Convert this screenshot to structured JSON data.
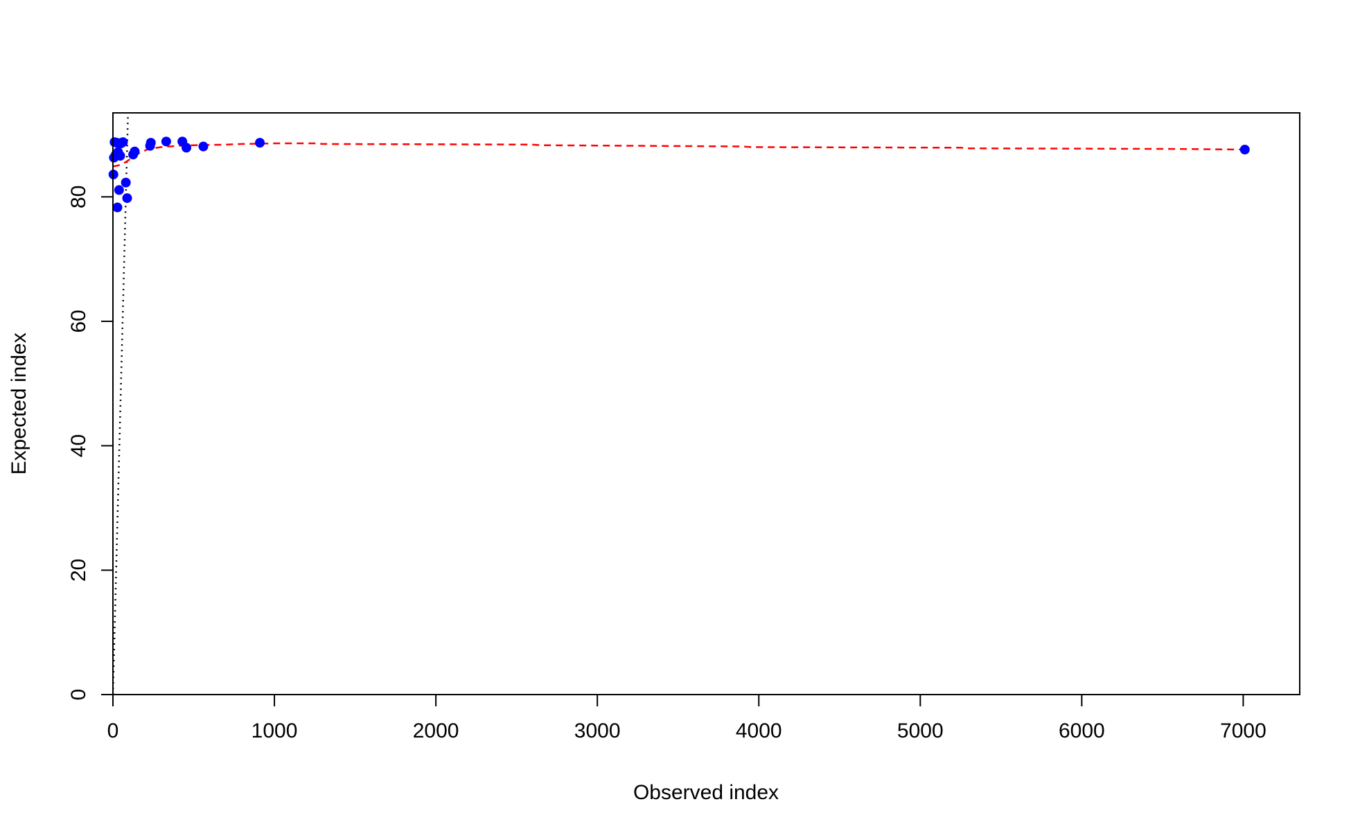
{
  "chart_data": {
    "type": "scatter",
    "xlabel": "Observed index",
    "ylabel": "Expected index",
    "xlim": [
      0,
      7350
    ],
    "ylim": [
      0,
      93.5
    ],
    "x_ticks": [
      0,
      1000,
      2000,
      3000,
      4000,
      5000,
      6000,
      7000
    ],
    "y_ticks": [
      0,
      20,
      40,
      60,
      80
    ],
    "grid": false,
    "points": {
      "color": "#0000ff",
      "data": [
        {
          "x": 3,
          "y": 83.6
        },
        {
          "x": 6,
          "y": 86.3
        },
        {
          "x": 10,
          "y": 88.8
        },
        {
          "x": 18,
          "y": 86.8
        },
        {
          "x": 25,
          "y": 88.7
        },
        {
          "x": 28,
          "y": 78.3
        },
        {
          "x": 32,
          "y": 87.2
        },
        {
          "x": 38,
          "y": 81.1
        },
        {
          "x": 45,
          "y": 86.6
        },
        {
          "x": 50,
          "y": 88.6
        },
        {
          "x": 62,
          "y": 88.8
        },
        {
          "x": 80,
          "y": 82.3
        },
        {
          "x": 88,
          "y": 79.8
        },
        {
          "x": 125,
          "y": 86.8
        },
        {
          "x": 135,
          "y": 87.3
        },
        {
          "x": 230,
          "y": 88.2
        },
        {
          "x": 235,
          "y": 88.7
        },
        {
          "x": 330,
          "y": 88.9
        },
        {
          "x": 430,
          "y": 88.9
        },
        {
          "x": 455,
          "y": 87.9
        },
        {
          "x": 560,
          "y": 88.1
        },
        {
          "x": 910,
          "y": 88.7
        },
        {
          "x": 7010,
          "y": 87.6
        }
      ]
    },
    "smooth_line": {
      "color": "#ff0000",
      "style": "dashed",
      "x": [
        0,
        25,
        50,
        80,
        120,
        160,
        220,
        300,
        400,
        500,
        600,
        700,
        800,
        1000,
        1250,
        1300,
        2000,
        2600,
        2650,
        3300,
        3900,
        3950,
        4600,
        5250,
        5300,
        6000,
        6600,
        7010
      ],
      "y": [
        84.9,
        85.0,
        85.2,
        85.6,
        86.3,
        87.0,
        87.7,
        88.0,
        88.2,
        88.3,
        88.35,
        88.4,
        88.5,
        88.6,
        88.6,
        88.5,
        88.45,
        88.4,
        88.3,
        88.2,
        88.1,
        88.0,
        87.95,
        87.9,
        87.8,
        87.75,
        87.7,
        87.6
      ]
    },
    "reference_line": {
      "color": "#000000",
      "style": "dotted",
      "x": [
        0,
        93.5
      ],
      "y": [
        0,
        93.5
      ]
    }
  }
}
